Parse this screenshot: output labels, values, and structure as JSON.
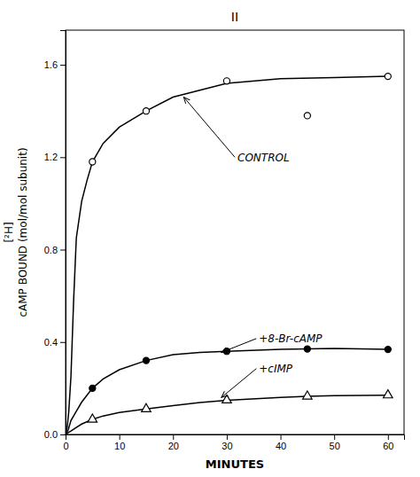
{
  "chart_data": {
    "type": "line",
    "title": "II",
    "xlabel": "MINUTES",
    "ylabel": [
      "[²H]",
      "cAMP BOUND  (mol/mol  subunit)"
    ],
    "xlim": [
      0,
      63
    ],
    "ylim": [
      0,
      1.75
    ],
    "xticks": [
      0,
      10,
      20,
      30,
      40,
      50,
      60
    ],
    "yticks": [
      {
        "value": 0,
        "label": "0.0"
      },
      0.4,
      0.8,
      1.2,
      1.6
    ],
    "series": [
      {
        "type": "line",
        "color": "#000000",
        "line_style": "solid",
        "x": [
          0,
          0.3,
          0.6,
          1,
          1.5,
          2,
          3,
          4,
          5,
          7,
          10,
          15,
          20,
          25,
          30,
          40,
          50,
          60
        ],
        "values": [
          0,
          0.03,
          0.1,
          0.25,
          0.58,
          0.85,
          1.01,
          1.1,
          1.18,
          1.26,
          1.33,
          1.4,
          1.46,
          1.49,
          1.52,
          1.54,
          1.545,
          1.55
        ]
      },
      {
        "type": "scatter",
        "color": "#000000",
        "marker": "open-circle",
        "x": [
          5,
          15,
          30,
          45,
          60
        ],
        "values": [
          1.18,
          1.4,
          1.53,
          1.38,
          1.55
        ]
      },
      {
        "type": "line",
        "color": "#000000",
        "line_style": "solid",
        "x": [
          0,
          0.5,
          1,
          2,
          3,
          5,
          7,
          10,
          15,
          20,
          25,
          30,
          40,
          45,
          50,
          60
        ],
        "values": [
          0,
          0.02,
          0.06,
          0.1,
          0.14,
          0.2,
          0.24,
          0.28,
          0.32,
          0.345,
          0.355,
          0.36,
          0.368,
          0.37,
          0.372,
          0.368
        ]
      },
      {
        "type": "scatter",
        "color": "#000000",
        "marker": "circle",
        "x": [
          5,
          15,
          30,
          45,
          60
        ],
        "values": [
          0.2,
          0.32,
          0.36,
          0.37,
          0.368
        ]
      },
      {
        "type": "line",
        "color": "#000000",
        "line_style": "solid",
        "x": [
          0,
          0.5,
          1,
          2,
          3,
          5,
          7,
          10,
          15,
          20,
          25,
          30,
          40,
          45,
          50,
          60
        ],
        "values": [
          0,
          0.008,
          0.015,
          0.03,
          0.045,
          0.065,
          0.08,
          0.095,
          0.11,
          0.125,
          0.138,
          0.148,
          0.16,
          0.165,
          0.168,
          0.17
        ]
      },
      {
        "type": "scatter",
        "color": "#000000",
        "marker": "open-triangle",
        "x": [
          5,
          15,
          30,
          45,
          60
        ],
        "values": [
          0.065,
          0.11,
          0.148,
          0.165,
          0.17
        ]
      }
    ],
    "annotations": [
      {
        "text": "CONTROL",
        "x": 22,
        "y": 1.46,
        "text_x": 32,
        "text_y": 1.2
      },
      {
        "text": "+8-Br-cAMP",
        "x": 29,
        "y": 0.355,
        "text_x": 36,
        "text_y": 0.415
      },
      {
        "text": "+cIMP",
        "x": 29,
        "y": 0.16,
        "text_x": 36,
        "text_y": 0.285
      }
    ]
  }
}
